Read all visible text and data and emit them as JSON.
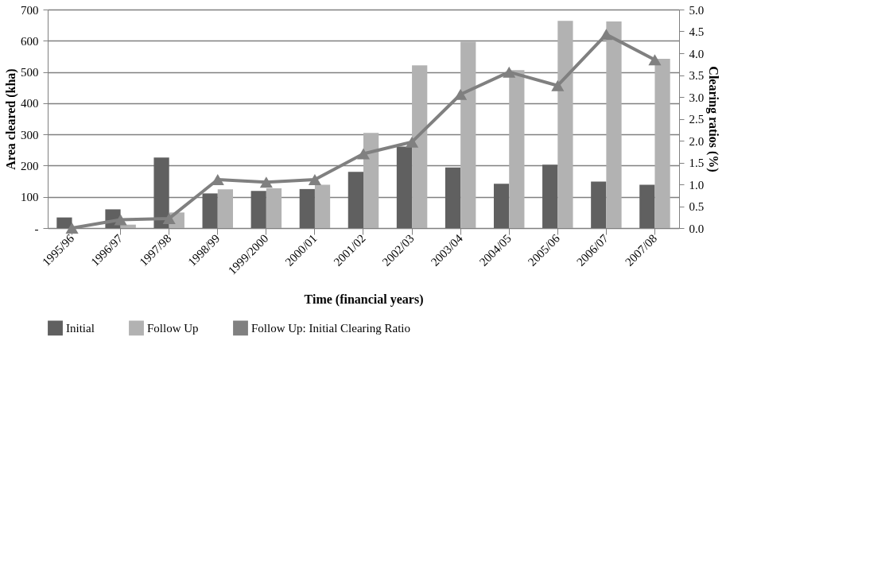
{
  "chart_data": {
    "type": "bar",
    "xlabel": "Time (financial years)",
    "ylabel": "Area cleared (kha)",
    "y2label": "Clearing ratios (%)",
    "categories": [
      "1995/96",
      "1996/97",
      "1997/98",
      "1998/99",
      "1999/2000",
      "2000/01",
      "2001/02",
      "2002/03",
      "2003/04",
      "2004/05",
      "2005/06",
      "2006/07",
      "2007/08"
    ],
    "series": [
      {
        "name": "Initial",
        "color": "#606060",
        "values": [
          34,
          60,
          226,
          111,
          119,
          125,
          180,
          261,
          194,
          142,
          203,
          149,
          139
        ]
      },
      {
        "name": "Follow Up",
        "color": "#b2b2b2",
        "values": [
          null,
          11,
          50,
          124,
          127,
          139,
          305,
          521,
          597,
          506,
          664,
          662,
          542
        ]
      },
      {
        "name": "Follow Up: Initial Clearing Ratio",
        "type": "line",
        "axis": "y2",
        "color": "#808080",
        "marker": "triangle",
        "line_style": "solid",
        "values": [
          0.0,
          0.19,
          0.22,
          1.11,
          1.05,
          1.11,
          1.7,
          1.97,
          3.06,
          3.57,
          3.26,
          4.43,
          3.85
        ]
      }
    ],
    "ylim": [
      0,
      700
    ],
    "yticks": [
      {
        "value": 0,
        "label": "-"
      },
      100,
      200,
      300,
      400,
      500,
      600,
      700
    ],
    "y2lim": [
      0,
      5
    ],
    "y2ticks": [
      {
        "value": 0,
        "label": "0.0"
      },
      0.5,
      {
        "value": 1,
        "label": "1.0"
      },
      1.5,
      {
        "value": 2,
        "label": "2.0"
      },
      2.5,
      {
        "value": 3,
        "label": "3.0"
      },
      3.5,
      {
        "value": 4,
        "label": "4.0"
      },
      4.5,
      {
        "value": 5,
        "label": "5.0"
      }
    ],
    "grid": "y",
    "legend": "bottom"
  }
}
